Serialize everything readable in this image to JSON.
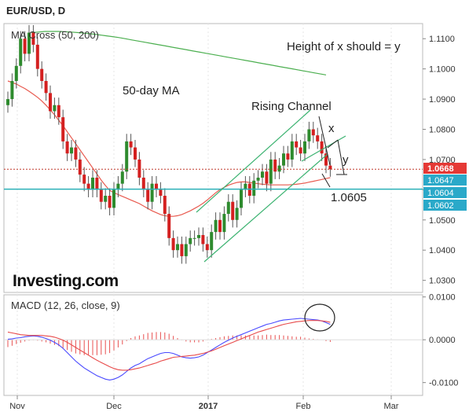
{
  "header": {
    "symbol_title": "EUR/USD, D"
  },
  "indicators": {
    "price_panel_label": "MA Cross (50, 200)",
    "macd_panel_label": "MACD (12, 26, close, 9)"
  },
  "annotations": {
    "height_note": "Height of x should = y",
    "ma50_label": "50-day MA",
    "channel_label": "Rising Channel",
    "x_mark": "x",
    "y_mark": "y",
    "target_label": "1.0605"
  },
  "watermark": "Investing.com",
  "colors": {
    "bull": "#2e8b2e",
    "bear": "#d42020",
    "ma50": "#e85a4f",
    "ma200": "#4caf50",
    "channel": "#3cb371",
    "support": "#2ab0b8",
    "resistance": "#c0392b",
    "macd_line": "#4a4aff",
    "signal_line": "#e84a4a",
    "hist": "#e85050"
  },
  "chart_data": [
    {
      "type": "candlestick",
      "series_name": "EUR/USD",
      "x_axis_labels": [
        "Nov",
        "Dec",
        "2017",
        "Feb",
        "Mar"
      ],
      "ylim": [
        1.026,
        1.115
      ],
      "y_ticks": [
        "1.0300",
        "1.0400",
        "1.0500",
        "1.0600",
        "1.0700",
        "1.0800",
        "1.0900",
        "1.1000",
        "1.1100"
      ],
      "price_tags": [
        {
          "value": 1.0668,
          "label": "1.0668",
          "style": "last"
        },
        {
          "value": 1.0647,
          "label": "1.0647",
          "style": "level"
        },
        {
          "value": 1.0604,
          "label": "1.0604",
          "style": "level"
        },
        {
          "value": 1.0602,
          "label": "1.0602",
          "style": "level"
        }
      ],
      "horizontal_lines": [
        {
          "value": 1.0668,
          "style": "dotted-red"
        },
        {
          "value": 1.0602,
          "style": "cyan"
        }
      ],
      "closes": [
        1.09,
        1.096,
        1.101,
        1.11,
        1.105,
        1.112,
        1.108,
        1.1,
        1.096,
        1.092,
        1.086,
        1.088,
        1.084,
        1.076,
        1.072,
        1.074,
        1.07,
        1.065,
        1.062,
        1.06,
        1.064,
        1.06,
        1.056,
        1.058,
        1.054,
        1.06,
        1.062,
        1.066,
        1.076,
        1.074,
        1.07,
        1.064,
        1.06,
        1.056,
        1.062,
        1.06,
        1.058,
        1.052,
        1.044,
        1.04,
        1.042,
        1.038,
        1.042,
        1.044,
        1.044,
        1.045,
        1.042,
        1.04,
        1.046,
        1.05,
        1.046,
        1.052,
        1.056,
        1.05,
        1.054,
        1.06,
        1.062,
        1.058,
        1.063,
        1.064,
        1.066,
        1.062,
        1.07,
        1.066,
        1.068,
        1.072,
        1.07,
        1.076,
        1.074,
        1.072,
        1.076,
        1.08,
        1.078,
        1.076,
        1.072,
        1.068,
        1.0668
      ],
      "ma50": [
        1.096,
        1.0955,
        1.095,
        1.0942,
        1.0935,
        1.0926,
        1.0916,
        1.0906,
        1.0894,
        1.088,
        1.0864,
        1.0848,
        1.083,
        1.0812,
        1.0792,
        1.0772,
        1.0752,
        1.0732,
        1.0712,
        1.0692,
        1.0672,
        1.0652,
        1.0632,
        1.0614,
        1.0598,
        1.059,
        1.0584,
        1.0578,
        1.0572,
        1.0566,
        1.056,
        1.0554,
        1.0546,
        1.0538,
        1.053,
        1.0524,
        1.0518,
        1.0514,
        1.0512,
        1.0512,
        1.0514,
        1.0518,
        1.0524,
        1.053,
        1.0538,
        1.0546,
        1.0555,
        1.0566,
        1.0578,
        1.059,
        1.06,
        1.0608,
        1.0615,
        1.062,
        1.0624,
        1.0626,
        1.0626,
        1.0624,
        1.0622,
        1.062,
        1.0618,
        1.0617,
        1.0616,
        1.0616,
        1.0616,
        1.0616,
        1.0616,
        1.0617,
        1.0618,
        1.062,
        1.0622,
        1.0625,
        1.0628,
        1.0631,
        1.0634,
        1.0637,
        1.064
      ],
      "ma200": [
        1.112,
        1.1122,
        1.1124,
        1.1124,
        1.1124,
        1.1123,
        1.1122,
        1.112,
        1.1118,
        1.1116,
        1.1113,
        1.111,
        1.1107,
        1.1104,
        1.11,
        1.1096,
        1.1092,
        1.1088,
        1.1084,
        1.108,
        1.1076,
        1.1072,
        1.1068,
        1.1064,
        1.106,
        1.1056,
        1.1052,
        1.1048,
        1.1044,
        1.104,
        1.1036,
        1.1032,
        1.1028,
        1.1024,
        1.102,
        1.1016,
        1.1012,
        1.1008,
        1.1004,
        1.1,
        1.0996,
        1.0992,
        1.0988,
        1.0984,
        1.098
      ]
    },
    {
      "type": "line",
      "series_name": "MACD (12, 26, close, 9)",
      "ylim": [
        -0.013,
        0.0105
      ],
      "y_ticks": [
        "-0.0100",
        "0.0000",
        "0.0100"
      ],
      "macd": [
        0.0001,
        0.0002,
        0.0004,
        0.0005,
        0.0007,
        0.0008,
        0.0009,
        0.0008,
        0.0006,
        0.0003,
        -0.0001,
        -0.0006,
        -0.0012,
        -0.002,
        -0.003,
        -0.004,
        -0.005,
        -0.0058,
        -0.0066,
        -0.0072,
        -0.0078,
        -0.0084,
        -0.0088,
        -0.0092,
        -0.0094,
        -0.0092,
        -0.0088,
        -0.0082,
        -0.0074,
        -0.0066,
        -0.006,
        -0.0056,
        -0.005,
        -0.0044,
        -0.004,
        -0.0036,
        -0.0032,
        -0.003,
        -0.003,
        -0.0032,
        -0.0036,
        -0.004,
        -0.0042,
        -0.0043,
        -0.0042,
        -0.004,
        -0.0036,
        -0.003,
        -0.0024,
        -0.0018,
        -0.0012,
        -0.0006,
        -0.0001,
        0.0004,
        0.0008,
        0.0012,
        0.0016,
        0.002,
        0.0024,
        0.0028,
        0.0032,
        0.0036,
        0.0038,
        0.0041,
        0.0044,
        0.0046,
        0.0047,
        0.0048,
        0.0049,
        0.005,
        0.0049,
        0.0048,
        0.0047,
        0.0046,
        0.0044,
        0.004,
        0.0036
      ],
      "signal": [
        0.0018,
        0.0016,
        0.0014,
        0.0012,
        0.0011,
        0.001,
        0.001,
        0.001,
        0.001,
        0.0009,
        0.0008,
        0.0006,
        0.0003,
        -0.0001,
        -0.0006,
        -0.0012,
        -0.0018,
        -0.0024,
        -0.003,
        -0.0036,
        -0.0042,
        -0.0048,
        -0.0053,
        -0.0058,
        -0.0063,
        -0.0067,
        -0.007,
        -0.0071,
        -0.0071,
        -0.007,
        -0.0068,
        -0.0066,
        -0.0063,
        -0.006,
        -0.0057,
        -0.0054,
        -0.005,
        -0.0047,
        -0.0044,
        -0.0041,
        -0.004,
        -0.0039,
        -0.0038,
        -0.0037,
        -0.0036,
        -0.0034,
        -0.0032,
        -0.0029,
        -0.0026,
        -0.0022,
        -0.0018,
        -0.0014,
        -0.001,
        -0.0006,
        -0.0002,
        0.0002,
        0.0006,
        0.001,
        0.0014,
        0.0018,
        0.0021,
        0.0024,
        0.0027,
        0.003,
        0.0033,
        0.0036,
        0.0038,
        0.004,
        0.0042,
        0.0043,
        0.0044,
        0.0045,
        0.0045,
        0.0045,
        0.0044,
        0.0043,
        0.0041
      ]
    }
  ]
}
